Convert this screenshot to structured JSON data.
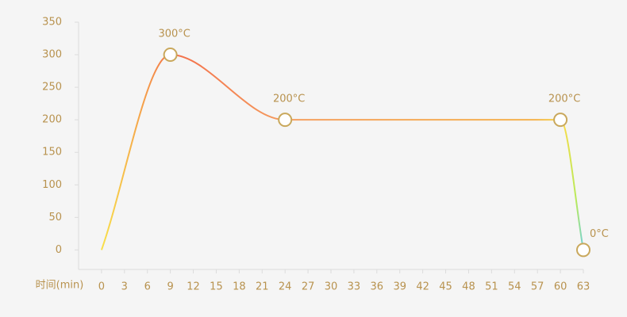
{
  "chart_data": {
    "type": "line",
    "x_label": "时间(min)",
    "x": [
      0,
      9,
      24,
      60,
      63
    ],
    "values": [
      0,
      300,
      200,
      200,
      0
    ],
    "value_labels": [
      null,
      "300°C",
      "200°C",
      "200°C",
      "0°C"
    ],
    "xlim": [
      -3,
      63
    ],
    "xticks": [
      0,
      3,
      6,
      9,
      12,
      15,
      18,
      21,
      24,
      27,
      30,
      33,
      36,
      39,
      42,
      45,
      48,
      51,
      54,
      57,
      60,
      63
    ],
    "ylim": [
      -30,
      350
    ],
    "yticks": [
      0,
      50,
      100,
      150,
      200,
      250,
      300,
      350
    ],
    "marker_color": "#c9a85c"
  }
}
